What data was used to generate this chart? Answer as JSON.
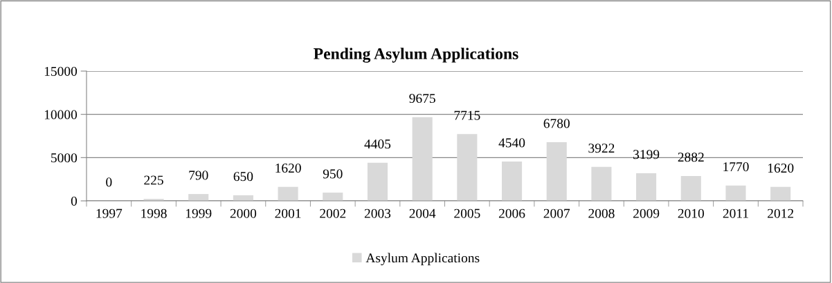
{
  "chart_data": {
    "type": "bar",
    "title": "Pending Asylum Applications",
    "categories": [
      "1997",
      "1998",
      "1999",
      "2000",
      "2001",
      "2002",
      "2003",
      "2004",
      "2005",
      "2006",
      "2007",
      "2008",
      "2009",
      "2010",
      "2011",
      "2012"
    ],
    "series": [
      {
        "name": "Asylum Applications",
        "color": "#d9d9d9",
        "values": [
          0,
          225,
          790,
          650,
          1620,
          950,
          4405,
          9675,
          7715,
          4540,
          6780,
          3922,
          3199,
          2882,
          1770,
          1620
        ]
      }
    ],
    "ylim": [
      0,
      15000
    ],
    "yticks": [
      0,
      5000,
      10000,
      15000
    ],
    "grid": "y",
    "legend": "bottom",
    "data_labels": true
  }
}
